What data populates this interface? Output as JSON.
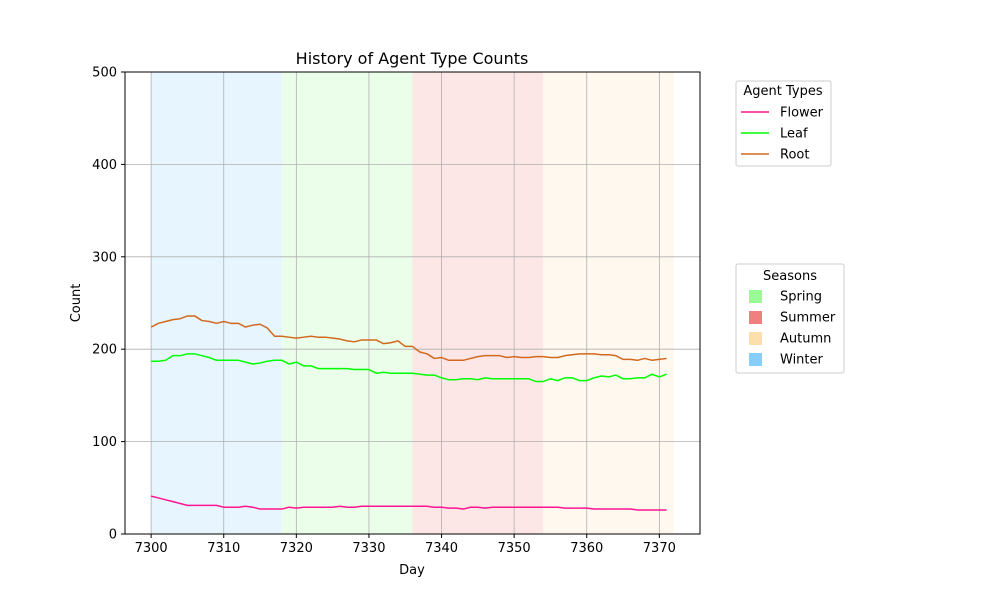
{
  "chart_data": {
    "type": "line",
    "title": "History of Agent Type Counts",
    "xlabel": "Day",
    "ylabel": "Count",
    "xlim": [
      7296.4,
      7375.6
    ],
    "ylim": [
      0,
      500
    ],
    "x_ticks": [
      7300,
      7310,
      7320,
      7330,
      7340,
      7350,
      7360,
      7370
    ],
    "y_ticks": [
      0,
      100,
      200,
      300,
      400,
      500
    ],
    "grid": true,
    "x": [
      7300,
      7301,
      7302,
      7303,
      7304,
      7305,
      7306,
      7307,
      7308,
      7309,
      7310,
      7311,
      7312,
      7313,
      7314,
      7315,
      7316,
      7317,
      7318,
      7319,
      7320,
      7321,
      7322,
      7323,
      7324,
      7325,
      7326,
      7327,
      7328,
      7329,
      7330,
      7331,
      7332,
      7333,
      7334,
      7335,
      7336,
      7337,
      7338,
      7339,
      7340,
      7341,
      7342,
      7343,
      7344,
      7345,
      7346,
      7347,
      7348,
      7349,
      7350,
      7351,
      7352,
      7353,
      7354,
      7355,
      7356,
      7357,
      7358,
      7359,
      7360,
      7361,
      7362,
      7363,
      7364,
      7365,
      7366,
      7367,
      7368,
      7369,
      7370,
      7371
    ],
    "series": [
      {
        "name": "Flower",
        "color": "#ff1493",
        "values": [
          41,
          39,
          37,
          35,
          33,
          31,
          31,
          31,
          31,
          31,
          29,
          29,
          29,
          30,
          29,
          27,
          27,
          27,
          27,
          29,
          28,
          29,
          29,
          29,
          29,
          29,
          30,
          29,
          29,
          30,
          30,
          30,
          30,
          30,
          30,
          30,
          30,
          30,
          30,
          29,
          29,
          28,
          28,
          27,
          29,
          29,
          28,
          29,
          29,
          29,
          29,
          29,
          29,
          29,
          29,
          29,
          29,
          28,
          28,
          28,
          28,
          27,
          27,
          27,
          27,
          27,
          27,
          26,
          26,
          26,
          26,
          26
        ]
      },
      {
        "name": "Leaf",
        "color": "#00ff00",
        "values": [
          187,
          187,
          188,
          193,
          193,
          195,
          195,
          193,
          191,
          188,
          188,
          188,
          188,
          186,
          184,
          185,
          187,
          188,
          188,
          184,
          186,
          182,
          182,
          179,
          179,
          179,
          179,
          179,
          178,
          178,
          178,
          174,
          175,
          174,
          174,
          174,
          174,
          173,
          172,
          172,
          169,
          167,
          167,
          168,
          168,
          167,
          169,
          168,
          168,
          168,
          168,
          168,
          168,
          165,
          165,
          168,
          166,
          169,
          169,
          166,
          166,
          169,
          171,
          170,
          172,
          168,
          168,
          169,
          169,
          173,
          170,
          173
        ]
      },
      {
        "name": "Root",
        "color": "#d2691e",
        "values": [
          224,
          228,
          230,
          232,
          233,
          236,
          236,
          231,
          230,
          228,
          230,
          228,
          228,
          224,
          226,
          227,
          223,
          214,
          214,
          213,
          212,
          213,
          214,
          213,
          213,
          212,
          211,
          209,
          208,
          210,
          210,
          210,
          206,
          207,
          209,
          203,
          203,
          197,
          195,
          190,
          191,
          188,
          188,
          188,
          190,
          192,
          193,
          193,
          193,
          191,
          192,
          191,
          191,
          192,
          192,
          191,
          191,
          193,
          194,
          195,
          195,
          195,
          194,
          194,
          193,
          189,
          189,
          188,
          190,
          188,
          189,
          190
        ]
      }
    ],
    "seasons": [
      {
        "name": "Winter",
        "start": 7300,
        "end": 7318,
        "color": "#87cefa"
      },
      {
        "name": "Spring",
        "start": 7318,
        "end": 7336,
        "color": "#98fb98"
      },
      {
        "name": "Summer",
        "start": 7336,
        "end": 7354,
        "color": "#f08080"
      },
      {
        "name": "Autumn",
        "start": 7354,
        "end": 7372,
        "color": "#ffdead"
      }
    ],
    "legends": {
      "agent_types": {
        "title": "Agent Types",
        "entries": [
          "Flower",
          "Leaf",
          "Root"
        ]
      },
      "seasons": {
        "title": "Seasons",
        "entries": [
          {
            "name": "Spring",
            "color": "#98fb98"
          },
          {
            "name": "Summer",
            "color": "#f08080"
          },
          {
            "name": "Autumn",
            "color": "#ffdead"
          },
          {
            "name": "Winter",
            "color": "#87cefa"
          }
        ]
      }
    }
  }
}
